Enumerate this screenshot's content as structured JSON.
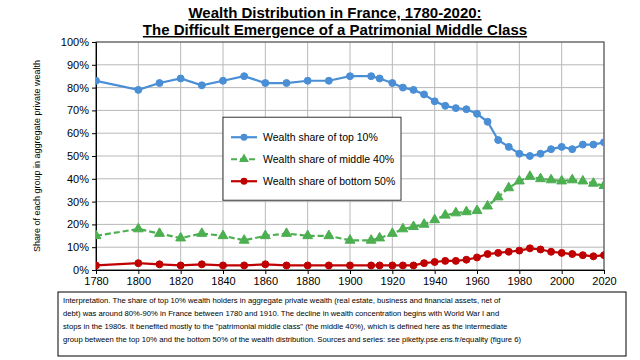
{
  "chart_data": {
    "type": "line",
    "title": "Wealth Distribution in France, 1780-2020:",
    "subtitle": "The Difficult Emergence of a Patrimonial Middle Class",
    "ylabel": "Share of each group in aggregate private wealth",
    "x": [
      1780,
      1800,
      1810,
      1820,
      1830,
      1840,
      1850,
      1860,
      1870,
      1880,
      1890,
      1900,
      1910,
      1914,
      1920,
      1925,
      1930,
      1935,
      1940,
      1945,
      1950,
      1955,
      1960,
      1965,
      1970,
      1975,
      1980,
      1985,
      1990,
      1995,
      2000,
      2005,
      2010,
      2015,
      2020
    ],
    "series": [
      {
        "name": "Wealth share of top 10%",
        "color": "#4a8fd6",
        "marker": "circle",
        "line_style": "solid",
        "values": [
          83,
          79,
          82,
          84,
          81,
          83,
          85,
          82,
          82,
          83,
          83,
          85,
          85,
          84,
          82,
          80,
          79,
          77,
          74,
          72,
          71,
          70.5,
          68.5,
          65,
          57,
          54,
          51,
          50,
          51,
          53,
          54,
          53,
          55,
          55,
          56
        ]
      },
      {
        "name": "Wealth share of middle 40%",
        "color": "#4caf50",
        "marker": "triangle",
        "line_style": "dashed",
        "values": [
          15,
          18,
          16,
          14,
          16,
          15,
          13,
          15,
          16,
          15,
          15,
          13,
          13,
          14,
          16,
          18,
          19,
          20,
          22,
          24,
          25,
          25.5,
          26,
          28,
          32,
          36,
          39,
          41,
          40,
          39.5,
          39,
          39.5,
          39,
          38,
          37
        ]
      },
      {
        "name": "Wealth share of bottom 50%",
        "color": "#c00000",
        "marker": "circle",
        "line_style": "solid",
        "values": [
          2,
          3,
          2.5,
          2,
          2.5,
          2,
          2,
          2.5,
          2,
          2,
          2,
          2,
          2,
          2,
          2,
          2,
          2,
          3,
          3.5,
          4,
          4,
          4.5,
          5.5,
          7,
          7.5,
          8,
          8.5,
          9.5,
          9,
          8,
          7.5,
          7,
          6.5,
          6,
          6.5
        ]
      }
    ],
    "xlim": [
      1780,
      2020
    ],
    "xticks": [
      1780,
      1800,
      1820,
      1840,
      1860,
      1880,
      1900,
      1920,
      1940,
      1960,
      1980,
      2000,
      2020
    ],
    "ylim": [
      0,
      100
    ],
    "yticks": [
      {
        "value": 0,
        "label": "0%"
      },
      {
        "value": 10,
        "label": "10%"
      },
      {
        "value": 20,
        "label": "20%"
      },
      {
        "value": 30,
        "label": "30%"
      },
      {
        "value": 40,
        "label": "40%"
      },
      {
        "value": 50,
        "label": "50%"
      },
      {
        "value": 60,
        "label": "60%"
      },
      {
        "value": 70,
        "label": "70%"
      },
      {
        "value": 80,
        "label": "80%"
      },
      {
        "value": 90,
        "label": "90%"
      },
      {
        "value": 100,
        "label": "100%"
      }
    ],
    "grid": true,
    "legend": "center",
    "annotations": [
      "Interpretation. The share of top 10% wealth holders in aggregate private wealth (real estate, business and financial assets, net of",
      "debt) was around 80%-90% in France between 1780 and 1910. The decline in wealth concentration begins with World War I and",
      "stops in the 1980s. It benefited mostly to the \"patrimonial middle class\" (the middle 40%), which is defined here as the intermediate",
      "group between the top 10% and the bottom 50% of the wealth distribution. Sources and series: see piketty.pse.ens.fr/equality (figure 6)"
    ]
  }
}
